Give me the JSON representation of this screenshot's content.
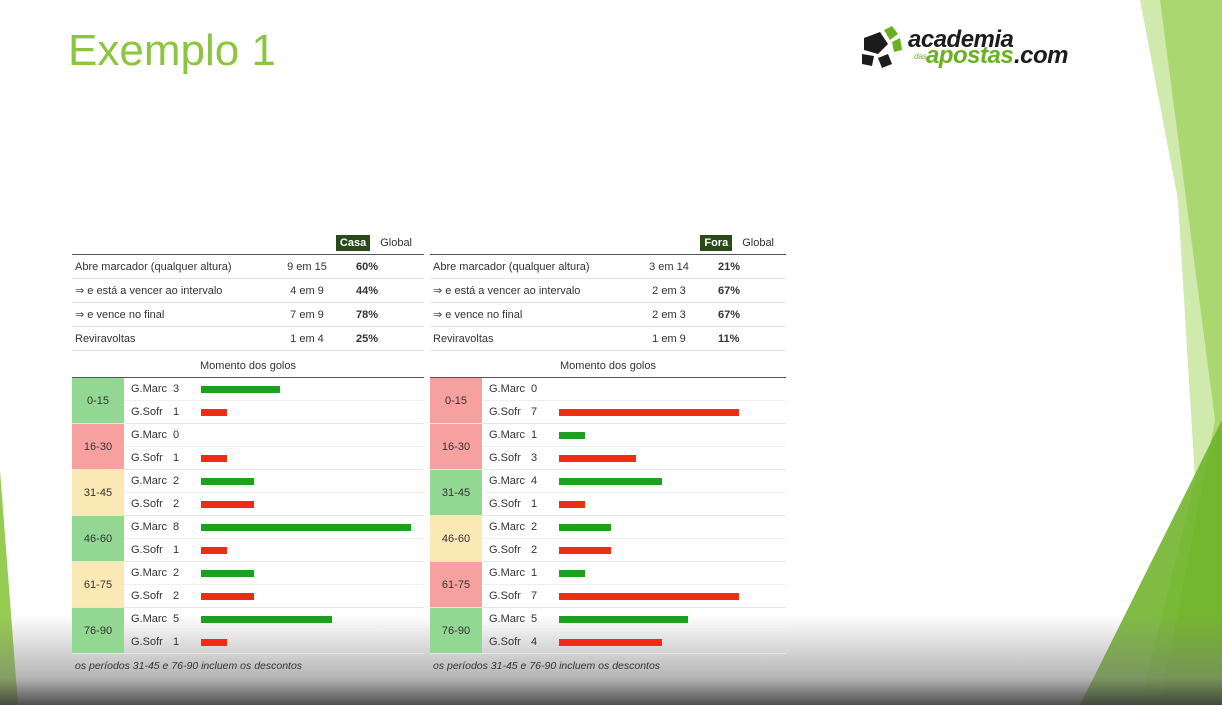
{
  "slide": {
    "title": "Exemplo 1",
    "logo": {
      "top": "academia",
      "das": "das",
      "bottom": "apostas",
      "com": ".com"
    }
  },
  "colors": {
    "title_green": "#8cc63f",
    "tab_active": "#2b4a1c",
    "bar_scored": "#1da01d",
    "bar_conceded": "#f02d14",
    "cell_green": "#92d892",
    "cell_red": "#f7a0a0",
    "cell_yellow": "#fbe9b5"
  },
  "home": {
    "tabs": [
      "Casa",
      "Global"
    ],
    "stats": [
      {
        "label": "Abre marcador (qualquer altura)",
        "count": "9 em 15",
        "pct": "60%"
      },
      {
        "label": "⇒ e está a vencer ao intervalo",
        "count": "4 em 9",
        "pct": "44%"
      },
      {
        "label": "⇒ e vence no final",
        "count": "7 em 9",
        "pct": "78%"
      },
      {
        "label": "Reviravoltas",
        "count": "1 em 4",
        "pct": "25%"
      }
    ],
    "moment_title": "Momento dos golos",
    "periods": [
      {
        "label": "0-15",
        "color": "green",
        "scored": 3,
        "conceded": 1
      },
      {
        "label": "16-30",
        "color": "red",
        "scored": 0,
        "conceded": 1
      },
      {
        "label": "31-45",
        "color": "yellow",
        "scored": 2,
        "conceded": 2
      },
      {
        "label": "46-60",
        "color": "green",
        "scored": 8,
        "conceded": 1
      },
      {
        "label": "61-75",
        "color": "yellow",
        "scored": 2,
        "conceded": 2
      },
      {
        "label": "76-90",
        "color": "green",
        "scored": 5,
        "conceded": 1
      }
    ],
    "scored_label": "G.Marc",
    "conceded_label": "G.Sofr",
    "note": "os períodos 31-45 e 76-90 incluem os descontos"
  },
  "away": {
    "tabs": [
      "Fora",
      "Global"
    ],
    "stats": [
      {
        "label": "Abre marcador (qualquer altura)",
        "count": "3 em 14",
        "pct": "21%"
      },
      {
        "label": "⇒ e está a vencer ao intervalo",
        "count": "2 em 3",
        "pct": "67%"
      },
      {
        "label": "⇒ e vence no final",
        "count": "2 em 3",
        "pct": "67%"
      },
      {
        "label": "Reviravoltas",
        "count": "1 em 9",
        "pct": "11%"
      }
    ],
    "moment_title": "Momento dos golos",
    "periods": [
      {
        "label": "0-15",
        "color": "red",
        "scored": 0,
        "conceded": 7
      },
      {
        "label": "16-30",
        "color": "red",
        "scored": 1,
        "conceded": 3
      },
      {
        "label": "31-45",
        "color": "green",
        "scored": 4,
        "conceded": 1
      },
      {
        "label": "46-60",
        "color": "yellow",
        "scored": 2,
        "conceded": 2
      },
      {
        "label": "61-75",
        "color": "red",
        "scored": 1,
        "conceded": 7
      },
      {
        "label": "76-90",
        "color": "green",
        "scored": 5,
        "conceded": 4
      }
    ],
    "scored_label": "G.Marc",
    "conceded_label": "G.Sofr",
    "note": "os períodos 31-45 e 76-90 incluem os descontos"
  }
}
